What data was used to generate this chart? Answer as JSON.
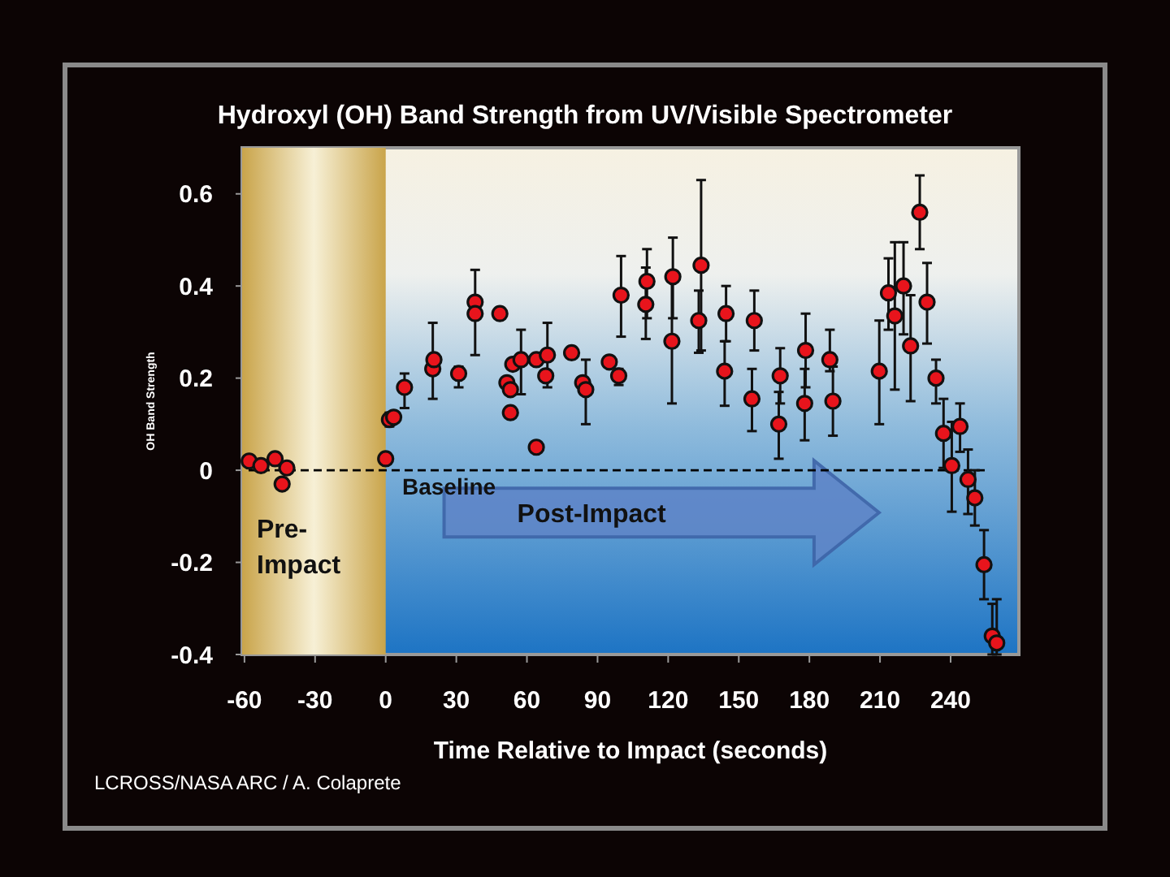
{
  "chart_data": {
    "type": "scatter",
    "title": "Hydroxyl (OH) Band Strength from UV/Visible Spectrometer",
    "xlabel": "Time Relative to Impact (seconds)",
    "ylabel": "OH Band Strength",
    "xlim": [
      -61,
      269
    ],
    "xticks": [
      -60,
      -30,
      0,
      30,
      60,
      90,
      120,
      150,
      180,
      210,
      240
    ],
    "ylim": [
      -0.4,
      0.7
    ],
    "yticks": [
      -0.4,
      -0.2,
      0,
      0.2,
      0.4,
      0.6
    ],
    "marker": "circle",
    "grid": false,
    "bands": [
      {
        "axis": "x",
        "from": -61,
        "to": 0,
        "label": "Pre-Impact",
        "color": "#c9a44a"
      }
    ],
    "ref_lines": [
      {
        "axis": "y",
        "value": 0,
        "label": "Baseline",
        "color": "#000000",
        "line_style": "dashed"
      }
    ],
    "annotations": [
      "Post-Impact",
      "LCROSS/NASA ARC / A. Colaprete"
    ],
    "series": [
      {
        "color": "#e8141c",
        "x": [
          -58,
          -53,
          -47,
          -44,
          -42,
          0,
          1.6,
          3.4,
          8,
          20,
          20.5,
          31,
          38,
          38,
          48.5,
          51.5,
          53,
          53,
          54,
          57.5,
          64,
          64,
          68.7,
          68,
          79,
          83.7,
          85,
          95,
          99,
          100,
          110.5,
          111,
          121.6,
          122,
          133,
          134,
          144,
          144.6,
          155.6,
          156.6,
          167,
          167.6,
          178,
          178.4,
          188.7,
          190,
          209.7,
          213.6,
          216.3,
          220,
          223,
          226.9,
          230,
          233.8,
          237,
          240.5,
          244,
          247.4,
          250.3,
          254.2,
          257.7,
          259.6
        ],
        "values": [
          0.02,
          0.01,
          0.025,
          -0.03,
          0.005,
          0.025,
          0.11,
          0.115,
          0.18,
          0.22,
          0.24,
          0.21,
          0.365,
          0.34,
          0.34,
          0.19,
          0.175,
          0.125,
          0.23,
          0.24,
          0.05,
          0.24,
          0.25,
          0.205,
          0.255,
          0.19,
          0.175,
          0.235,
          0.205,
          0.38,
          0.36,
          0.41,
          0.28,
          0.42,
          0.325,
          0.445,
          0.215,
          0.34,
          0.155,
          0.325,
          0.1,
          0.205,
          0.145,
          0.26,
          0.24,
          0.15,
          0.215,
          0.385,
          0.335,
          0.4,
          0.27,
          0.56,
          0.365,
          0.2,
          0.08,
          0.01,
          0.095,
          -0.02,
          -0.06,
          -0.205,
          -0.36,
          -0.375
        ],
        "errors": [
          null,
          null,
          null,
          null,
          null,
          null,
          [
            0.095,
            0.125
          ],
          null,
          [
            0.135,
            0.21
          ],
          [
            0.155,
            0.32
          ],
          null,
          [
            0.18,
            0.225
          ],
          null,
          [
            0.25,
            0.435
          ],
          null,
          null,
          null,
          null,
          null,
          [
            0.165,
            0.305
          ],
          null,
          null,
          [
            0.18,
            0.32
          ],
          null,
          null,
          null,
          [
            0.1,
            0.24
          ],
          null,
          [
            0.185,
            0.22
          ],
          [
            0.29,
            0.465
          ],
          [
            0.285,
            0.44
          ],
          [
            0.33,
            0.48
          ],
          [
            0.145,
            0.42
          ],
          [
            0.33,
            0.505
          ],
          [
            0.255,
            0.39
          ],
          [
            0.26,
            0.63
          ],
          [
            0.14,
            0.28
          ],
          [
            0.28,
            0.4
          ],
          [
            0.085,
            0.22
          ],
          [
            0.26,
            0.39
          ],
          [
            0.025,
            0.17
          ],
          [
            0.145,
            0.265
          ],
          [
            0.065,
            0.22
          ],
          [
            0.18,
            0.34
          ],
          [
            0.215,
            0.305
          ],
          [
            0.075,
            0.225
          ],
          [
            0.1,
            0.325
          ],
          [
            0.305,
            0.46
          ],
          [
            0.175,
            0.495
          ],
          [
            0.295,
            0.495
          ],
          [
            0.15,
            0.38
          ],
          [
            0.48,
            0.64
          ],
          [
            0.275,
            0.45
          ],
          [
            0.145,
            0.24
          ],
          [
            0.005,
            0.155
          ],
          [
            -0.09,
            0.105
          ],
          [
            0.04,
            0.145
          ],
          [
            -0.095,
            0.045
          ],
          [
            -0.12,
            0
          ],
          [
            -0.28,
            -0.13
          ],
          [
            -0.4,
            -0.29
          ],
          [
            -0.4,
            -0.28
          ]
        ]
      }
    ]
  }
}
